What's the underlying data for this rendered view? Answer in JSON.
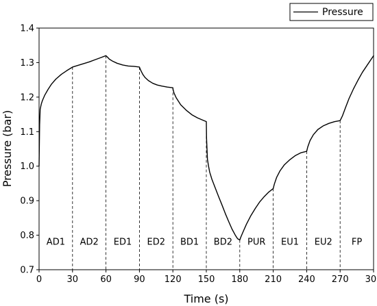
{
  "chart_data": {
    "type": "line",
    "xlabel": "Time (s)",
    "ylabel": "Pressure (bar)",
    "xlim": [
      0,
      300
    ],
    "ylim": [
      0.7,
      1.4
    ],
    "xticks": [
      0,
      30,
      60,
      90,
      120,
      150,
      180,
      210,
      240,
      270,
      300
    ],
    "yticks": [
      0.7,
      0.8,
      0.9,
      1.0,
      1.1,
      1.2,
      1.3,
      1.4
    ],
    "xtick_labels": [
      "0",
      "30",
      "60",
      "90",
      "120",
      "150",
      "180",
      "210",
      "240",
      "270",
      "300"
    ],
    "ytick_labels": [
      "0.7",
      "0.8",
      "0.9",
      "1.0",
      "1.1",
      "1.2",
      "1.3",
      "1.4"
    ],
    "grid": false,
    "legend": {
      "position": "top-right",
      "entries": [
        "Pressure"
      ]
    },
    "phase_boundaries": [
      30,
      60,
      90,
      120,
      150,
      180,
      210,
      240,
      270,
      300
    ],
    "phases": [
      {
        "label": "AD1",
        "x": 15,
        "y": 0.78
      },
      {
        "label": "AD2",
        "x": 45,
        "y": 0.78
      },
      {
        "label": "ED1",
        "x": 75,
        "y": 0.78
      },
      {
        "label": "ED2",
        "x": 105,
        "y": 0.78
      },
      {
        "label": "BD1",
        "x": 135,
        "y": 0.78
      },
      {
        "label": "BD2",
        "x": 165,
        "y": 0.78
      },
      {
        "label": "PUR",
        "x": 195,
        "y": 0.78
      },
      {
        "label": "EU1",
        "x": 225,
        "y": 0.78
      },
      {
        "label": "EU2",
        "x": 255,
        "y": 0.78
      },
      {
        "label": "FP",
        "x": 285,
        "y": 0.78
      }
    ],
    "series": [
      {
        "name": "Pressure",
        "color": "#000000",
        "x": [
          0,
          0.5,
          1,
          2,
          3,
          5,
          8,
          11,
          15,
          20,
          25,
          30,
          35,
          40,
          45,
          50,
          55,
          60,
          61,
          63,
          66,
          70,
          75,
          80,
          85,
          90,
          91,
          93,
          95,
          98,
          102,
          106,
          110,
          115,
          120,
          120.2,
          121,
          123,
          127,
          132,
          137,
          142,
          147,
          150,
          150.2,
          151,
          152,
          153,
          155,
          158,
          161,
          164,
          167,
          170,
          173,
          176,
          178,
          180,
          181,
          183,
          186,
          190,
          194,
          198,
          202,
          206,
          210,
          211,
          213,
          216,
          220,
          225,
          230,
          235,
          240,
          241,
          243,
          246,
          250,
          255,
          260,
          265,
          270,
          272,
          275,
          278,
          282,
          286,
          290,
          295,
          300
        ],
        "y": [
          1.0,
          1.12,
          1.165,
          1.18,
          1.19,
          1.205,
          1.222,
          1.237,
          1.252,
          1.266,
          1.277,
          1.287,
          1.292,
          1.297,
          1.302,
          1.308,
          1.314,
          1.32,
          1.317,
          1.31,
          1.304,
          1.298,
          1.293,
          1.29,
          1.289,
          1.287,
          1.279,
          1.266,
          1.257,
          1.248,
          1.24,
          1.235,
          1.232,
          1.229,
          1.227,
          1.222,
          1.212,
          1.198,
          1.178,
          1.162,
          1.149,
          1.14,
          1.133,
          1.129,
          1.08,
          1.02,
          1.0,
          0.983,
          0.962,
          0.937,
          0.912,
          0.888,
          0.863,
          0.84,
          0.818,
          0.8,
          0.79,
          0.786,
          0.795,
          0.81,
          0.832,
          0.857,
          0.878,
          0.897,
          0.912,
          0.925,
          0.935,
          0.948,
          0.967,
          0.986,
          1.004,
          1.019,
          1.031,
          1.039,
          1.043,
          1.056,
          1.074,
          1.091,
          1.106,
          1.117,
          1.124,
          1.129,
          1.132,
          1.145,
          1.171,
          1.196,
          1.224,
          1.249,
          1.272,
          1.296,
          1.32
        ]
      }
    ]
  }
}
